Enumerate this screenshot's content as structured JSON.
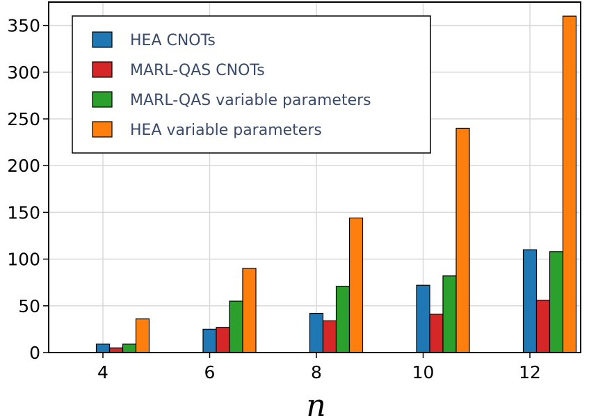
{
  "chart_data": {
    "type": "bar",
    "categories": [
      "4",
      "6",
      "8",
      "10",
      "12"
    ],
    "series": [
      {
        "name": "HEA CNOTs",
        "color": "#1f77b4",
        "values": [
          9,
          25,
          42,
          72,
          110
        ]
      },
      {
        "name": "MARL-QAS CNOTs",
        "color": "#d62728",
        "values": [
          5,
          27,
          34,
          41,
          56
        ]
      },
      {
        "name": "MARL-QAS variable parameters",
        "color": "#2ca02c",
        "values": [
          9,
          55,
          71,
          82,
          108
        ]
      },
      {
        "name": "HEA variable parameters",
        "color": "#ff7f0e",
        "values": [
          36,
          90,
          144,
          240,
          360
        ]
      }
    ],
    "title": "",
    "xlabel": "n",
    "ylabel": "",
    "ylim": [
      0,
      375
    ],
    "yticks": [
      "0",
      "50",
      "100",
      "150",
      "200",
      "250",
      "300",
      "350"
    ],
    "grid": true,
    "legend_position": "top-left"
  }
}
